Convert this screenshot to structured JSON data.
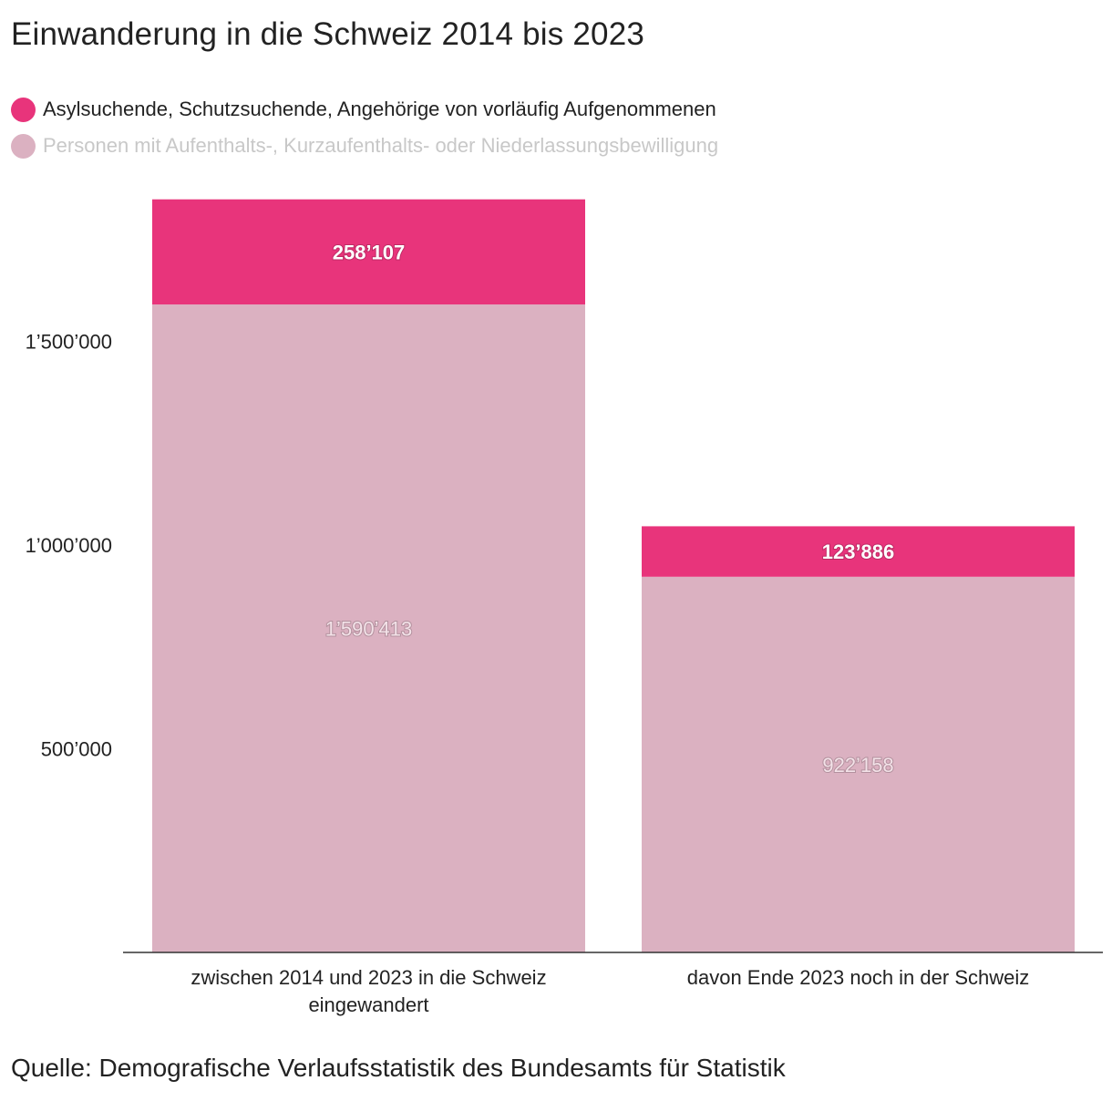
{
  "chart_data": {
    "type": "bar",
    "stacked": true,
    "title": "Einwanderung in die Schweiz 2014 bis 2023",
    "source": "Quelle: Demografische Verlaufsstatistik des Bundesamts für Statistik",
    "categories": [
      [
        "zwischen 2014 und 2023 in die Schweiz",
        "eingewandert"
      ],
      [
        "davon Ende 2023 noch in der Schweiz"
      ]
    ],
    "series": [
      {
        "name": "Personen mit Aufenthalts-, Kurzaufenthalts- oder Niederlassungsbewilligung",
        "color": "#dbb1c1",
        "label_color": "#f3e2e8",
        "legend_text_color": "#c8c8c8",
        "values": [
          1590413,
          922158
        ],
        "labels": [
          "1’590’413",
          "922’158"
        ]
      },
      {
        "name": "Asylsuchende, Schutzsuchende, Angehörige von vorläufig Aufgenommenen",
        "color": "#e8347b",
        "label_color": "#ffffff",
        "legend_text_color": "#222222",
        "values": [
          258107,
          123886
        ],
        "labels": [
          "258’107",
          "123’886"
        ]
      }
    ],
    "legend_order": [
      1,
      0
    ],
    "yticks": [
      {
        "value": 500000,
        "label": "500’000"
      },
      {
        "value": 1000000,
        "label": "1’000’000"
      },
      {
        "value": 1500000,
        "label": "1’500’000"
      }
    ],
    "ylim": [
      0,
      1850000
    ],
    "grid": false,
    "xlabel": "",
    "ylabel": ""
  }
}
